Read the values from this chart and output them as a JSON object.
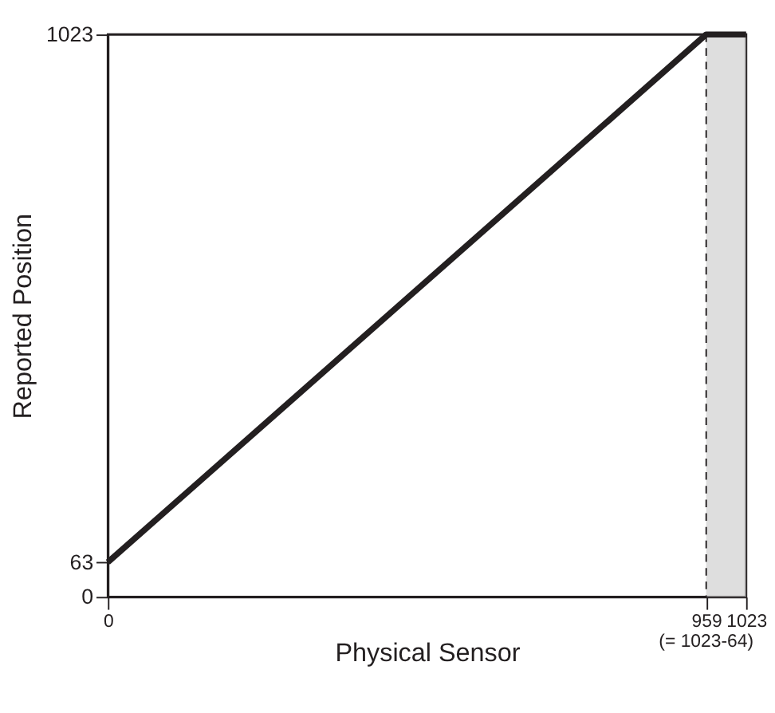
{
  "chart_data": {
    "type": "line",
    "xlabel": "Physical Sensor",
    "ylabel": "Reported Position",
    "x": [
      0,
      959,
      1023
    ],
    "series": [
      {
        "color": "#231f20",
        "values": [
          63,
          1023,
          1023
        ]
      }
    ],
    "xlim": [
      0,
      1023
    ],
    "ylim": [
      0,
      1023
    ],
    "xticks": [
      0,
      959,
      1023
    ],
    "yticks": [
      0,
      63,
      1023
    ],
    "grid": false,
    "marker": "none",
    "line_style": "solid",
    "ref_lines": [
      {
        "axis": "x",
        "value": 959,
        "color": "#231f20",
        "line_style": "dashed"
      }
    ],
    "bands": [
      {
        "axis": "x",
        "from": 959,
        "to": 1023,
        "color": "#c8c8c8"
      }
    ],
    "annotations": [
      "(= 1023-64)"
    ]
  }
}
